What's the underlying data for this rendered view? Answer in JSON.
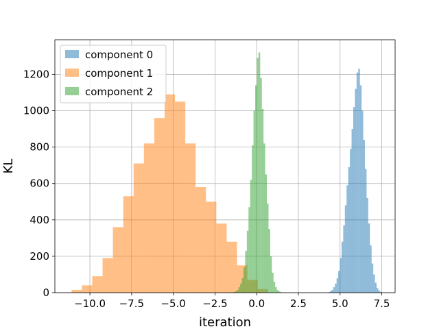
{
  "chart_data": {
    "type": "bar",
    "xlabel": "iteration",
    "ylabel": "KL",
    "xlim": [
      -12.1,
      8.3
    ],
    "ylim": [
      0,
      1390
    ],
    "grid": true,
    "legend_position": "top-left",
    "x_ticks": [
      {
        "value": -10.0,
        "label": "−10.0"
      },
      {
        "value": -7.5,
        "label": "−7.5"
      },
      {
        "value": -5.0,
        "label": "−5.0"
      },
      {
        "value": -2.5,
        "label": "−2.5"
      },
      {
        "value": 0.0,
        "label": "0.0"
      },
      {
        "value": 2.5,
        "label": "2.5"
      },
      {
        "value": 5.0,
        "label": "5.0"
      },
      {
        "value": 7.5,
        "label": "7.5"
      }
    ],
    "y_ticks": [
      {
        "value": 0,
        "label": "0"
      },
      {
        "value": 200,
        "label": "200"
      },
      {
        "value": 400,
        "label": "400"
      },
      {
        "value": 600,
        "label": "600"
      },
      {
        "value": 800,
        "label": "800"
      },
      {
        "value": 1000,
        "label": "1000"
      },
      {
        "value": 1200,
        "label": "1200"
      }
    ],
    "series": [
      {
        "name": "component 0",
        "color": "#1f77b4",
        "opacity": 0.5,
        "bin_start": 4.29,
        "bin_width": 0.1,
        "values": [
          3,
          8,
          15,
          30,
          50,
          80,
          120,
          190,
          280,
          370,
          480,
          590,
          690,
          790,
          900,
          1020,
          1120,
          1210,
          1230,
          1140,
          1000,
          840,
          680,
          520,
          380,
          260,
          160,
          100,
          55,
          25,
          12,
          5
        ]
      },
      {
        "name": "component 1",
        "color": "#ff7f0e",
        "opacity": 0.5,
        "bin_start": -11.1,
        "bin_width": 0.62,
        "values": [
          15,
          40,
          90,
          190,
          360,
          530,
          710,
          820,
          960,
          1090,
          1050,
          820,
          580,
          500,
          380,
          280,
          150,
          70,
          20
        ]
      },
      {
        "name": "component 2",
        "color": "#2ca02c",
        "opacity": 0.5,
        "bin_start": -1.49,
        "bin_width": 0.1,
        "values": [
          2,
          4,
          8,
          15,
          30,
          50,
          80,
          140,
          230,
          340,
          470,
          620,
          810,
          1000,
          1140,
          1290,
          1320,
          1180,
          1010,
          820,
          650,
          490,
          350,
          200,
          110,
          60,
          30,
          15,
          7,
          3
        ]
      }
    ]
  }
}
